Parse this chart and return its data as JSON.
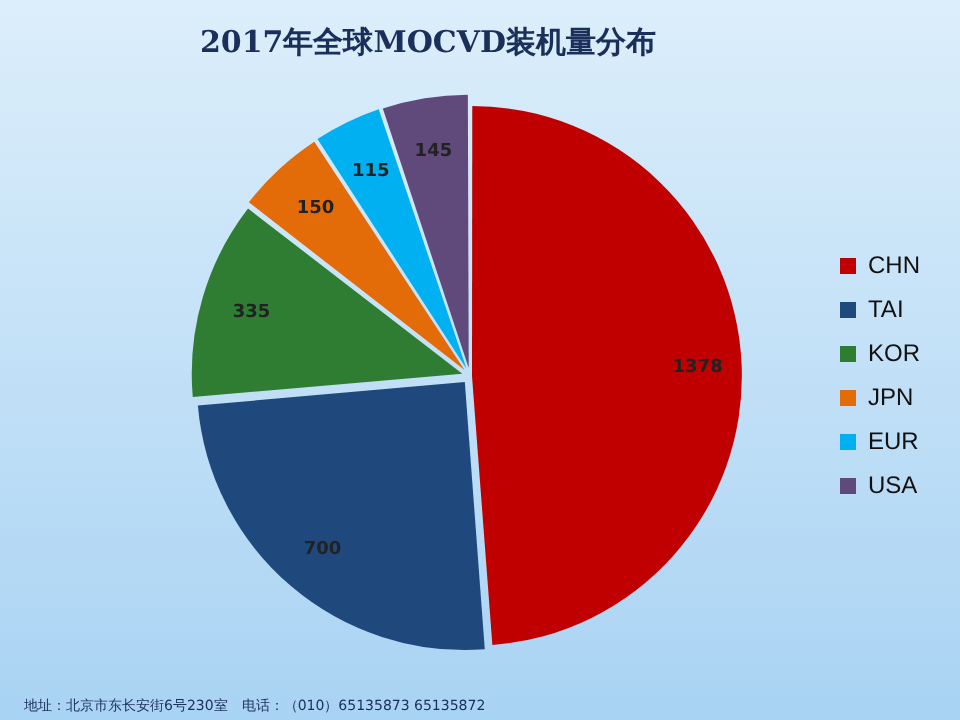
{
  "chart_data": {
    "type": "pie",
    "title": "2017年全球MOCVD装机量分布",
    "categories": [
      "CHN",
      "TAI",
      "KOR",
      "JPN",
      "EUR",
      "USA"
    ],
    "values": [
      1378,
      700,
      335,
      150,
      115,
      145
    ],
    "colors": [
      "#c00000",
      "#1f497d",
      "#2e7d32",
      "#e36c09",
      "#00b0f0",
      "#604a7b"
    ],
    "data_labels": true,
    "legend": "right",
    "annotations": [
      "地址：北京市东长安街6号230室　电话：（010）65135873 65135872"
    ]
  }
}
